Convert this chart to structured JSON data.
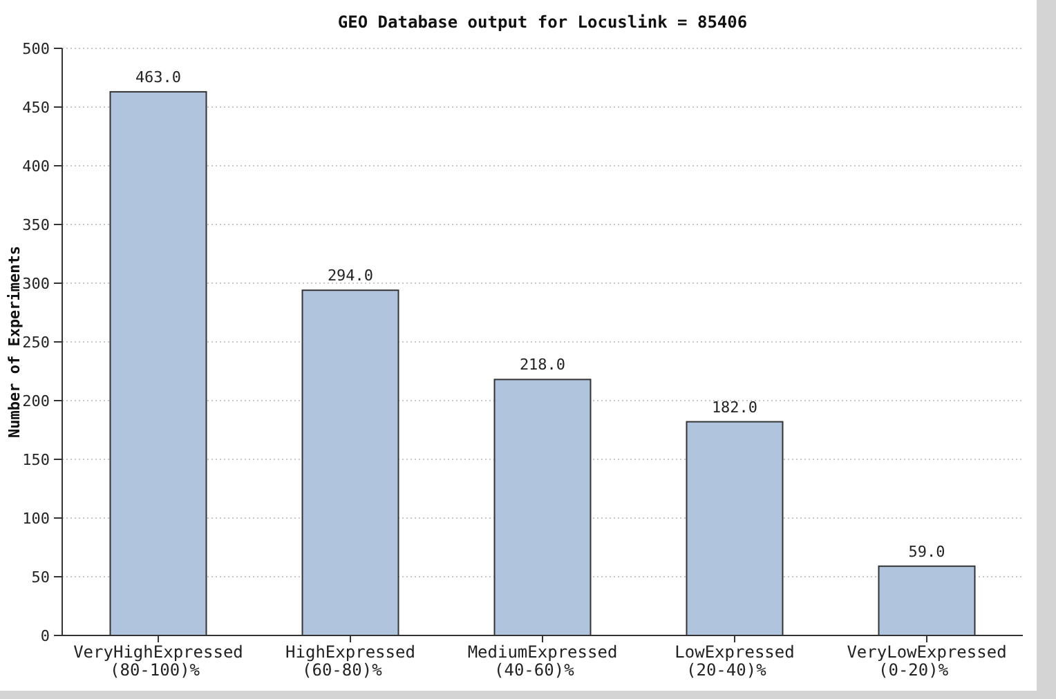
{
  "chart_data": {
    "type": "bar",
    "title": "GEO Database output for Locuslink  =  85406",
    "ylabel": "Number of Experiments",
    "categories": [
      "VeryHighExpressed\n(80-100)%",
      "HighExpressed\n(60-80)%",
      "MediumExpressed\n(40-60)%",
      "LowExpressed\n(20-40)%",
      "VeryLowExpressed\n(0-20)%"
    ],
    "values": [
      463.0,
      294.0,
      218.0,
      182.0,
      59.0
    ],
    "value_labels": [
      "463.0",
      "294.0",
      "218.0",
      "182.0",
      "59.0"
    ],
    "color": "#b0c4de",
    "ylim": [
      0,
      500
    ],
    "yticks": [
      0,
      50,
      100,
      150,
      200,
      250,
      300,
      350,
      400,
      450,
      500
    ],
    "grid": "y"
  }
}
